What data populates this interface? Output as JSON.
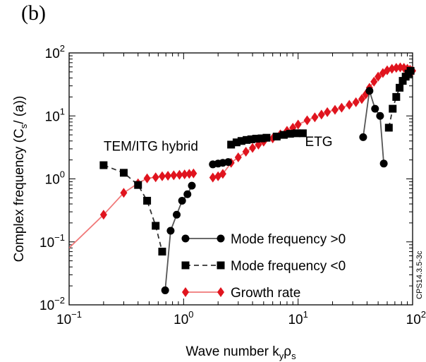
{
  "panel_label": "(b)",
  "side_label": "CPS14.3.5-3c",
  "chart_data": {
    "type": "scatter",
    "xscale": "log",
    "yscale": "log",
    "xlim": [
      0.1,
      100
    ],
    "ylim": [
      0.01,
      100
    ],
    "xlabel": {
      "base": "Wave number k",
      "sub1": "y",
      "mid": "ρ",
      "sub2": "s"
    },
    "ylabel": {
      "base": "Complex frequency (C",
      "sub1": "s",
      "tail": "/ (a))"
    },
    "x_ticks": [
      {
        "value": 0.1,
        "base": "10",
        "exp": "−1"
      },
      {
        "value": 1,
        "base": "10",
        "exp": "0"
      },
      {
        "value": 10,
        "base": "10",
        "exp": "1"
      },
      {
        "value": 100,
        "base": "10",
        "exp": "2"
      }
    ],
    "y_ticks": [
      {
        "value": 0.01,
        "base": "10",
        "exp": "−2"
      },
      {
        "value": 0.1,
        "base": "10",
        "exp": "−1"
      },
      {
        "value": 1,
        "base": "10",
        "exp": "0"
      },
      {
        "value": 10,
        "base": "10",
        "exp": "1"
      },
      {
        "value": 100,
        "base": "10",
        "exp": "2"
      }
    ],
    "annotations": [
      {
        "text": "TEM/ITG hybrid",
        "x": 0.2,
        "y": 2.8
      },
      {
        "text": "ETG",
        "x": 11.5,
        "y": 3.3
      }
    ],
    "legend": {
      "placement": "bottom-right",
      "entries": [
        {
          "label": "Mode frequency >0",
          "series": 0
        },
        {
          "label": "Mode frequency <0",
          "series": 1
        },
        {
          "label": "Growth rate",
          "series": 2
        }
      ]
    },
    "series": [
      {
        "name": "Mode frequency >0",
        "marker": "circle",
        "line": "solid",
        "color": "#000000",
        "line_color": "#555555",
        "segments": [
          [
            [
              0.69,
              0.017
            ],
            [
              0.77,
              0.15
            ],
            [
              0.87,
              0.27
            ],
            [
              0.97,
              0.45
            ],
            [
              1.08,
              0.57
            ],
            [
              1.18,
              0.78
            ]
          ],
          [
            [
              1.8,
              1.7
            ],
            [
              2.0,
              1.75
            ],
            [
              2.2,
              1.8
            ],
            [
              2.45,
              1.85
            ]
          ],
          [
            [
              37,
              4.6
            ],
            [
              42,
              25
            ],
            [
              47,
              13
            ],
            [
              52,
              10
            ],
            [
              56,
              1.75
            ]
          ]
        ]
      },
      {
        "name": "Mode frequency <0",
        "marker": "square",
        "line": "dashed",
        "color": "#000000",
        "line_color": "#333333",
        "segments": [
          [
            [
              0.2,
              1.65
            ],
            [
              0.3,
              1.25
            ],
            [
              0.4,
              0.8
            ],
            [
              0.48,
              0.45
            ],
            [
              0.57,
              0.18
            ],
            [
              0.65,
              0.07
            ]
          ],
          [
            [
              2.6,
              3.5
            ],
            [
              2.9,
              3.8
            ],
            [
              3.2,
              4.0
            ],
            [
              3.55,
              4.15
            ],
            [
              3.9,
              4.25
            ],
            [
              4.3,
              4.35
            ],
            [
              4.8,
              4.4
            ],
            [
              5.3,
              4.5
            ],
            [
              6.5,
              4.7
            ],
            [
              7.5,
              5.0
            ],
            [
              8.5,
              5.2
            ],
            [
              9.7,
              5.3
            ],
            [
              11,
              5.3
            ]
          ],
          [
            [
              62,
              6.5
            ],
            [
              67,
              13
            ],
            [
              72,
              20
            ],
            [
              77,
              28
            ],
            [
              82,
              36
            ],
            [
              87,
              42
            ],
            [
              92,
              47
            ],
            [
              96,
              52
            ]
          ]
        ]
      },
      {
        "name": "Growth rate",
        "marker": "diamond",
        "line": "solid",
        "color": "#e0141e",
        "line_color": "#f07878",
        "segments": [
          [
            [
              0.1,
              0.08
            ],
            [
              0.2,
              0.27
            ],
            [
              0.3,
              0.6
            ],
            [
              0.4,
              0.85
            ],
            [
              0.48,
              1.02
            ],
            [
              0.57,
              1.06
            ],
            [
              0.65,
              1.1
            ],
            [
              0.73,
              1.12
            ],
            [
              0.82,
              1.14
            ],
            [
              0.92,
              1.16
            ],
            [
              1.02,
              1.18
            ],
            [
              1.12,
              1.2
            ],
            [
              1.22,
              1.22
            ]
          ],
          [
            [
              1.8,
              1.05
            ],
            [
              2.0,
              1.1
            ],
            [
              2.2,
              1.2
            ],
            [
              2.6,
              1.8
            ],
            [
              3.0,
              2.2
            ],
            [
              3.5,
              2.7
            ],
            [
              4.0,
              3.1
            ],
            [
              4.5,
              3.5
            ],
            [
              5.0,
              3.9
            ],
            [
              6.0,
              4.4
            ],
            [
              7.0,
              5.1
            ],
            [
              8.0,
              5.8
            ],
            [
              9.0,
              6.5
            ],
            [
              10.0,
              7.3
            ],
            [
              12,
              8.5
            ],
            [
              14,
              9.5
            ],
            [
              16,
              10.5
            ],
            [
              18,
              11.5
            ],
            [
              21,
              12.5
            ],
            [
              24,
              13.5
            ],
            [
              28,
              15
            ],
            [
              32,
              16.5
            ],
            [
              36,
              18.5
            ],
            [
              39,
              22
            ],
            [
              42,
              28
            ],
            [
              46,
              35
            ],
            [
              50,
              42
            ],
            [
              55,
              48
            ],
            [
              60,
              53
            ],
            [
              66,
              56
            ],
            [
              72,
              58
            ],
            [
              78,
              59
            ],
            [
              84,
              58
            ],
            [
              90,
              56
            ],
            [
              95,
              54
            ],
            [
              100,
              52
            ]
          ]
        ]
      }
    ]
  }
}
